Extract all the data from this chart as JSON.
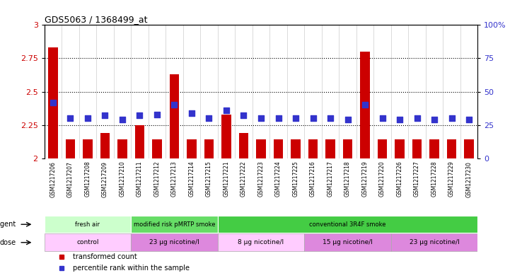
{
  "title": "GDS5063 / 1368499_at",
  "samples": [
    "GSM1217206",
    "GSM1217207",
    "GSM1217208",
    "GSM1217209",
    "GSM1217210",
    "GSM1217211",
    "GSM1217212",
    "GSM1217213",
    "GSM1217214",
    "GSM1217215",
    "GSM1217221",
    "GSM1217222",
    "GSM1217223",
    "GSM1217224",
    "GSM1217225",
    "GSM1217216",
    "GSM1217217",
    "GSM1217218",
    "GSM1217219",
    "GSM1217220",
    "GSM1217226",
    "GSM1217227",
    "GSM1217228",
    "GSM1217229",
    "GSM1217230"
  ],
  "transformed_counts": [
    2.83,
    2.14,
    2.14,
    2.19,
    2.14,
    2.25,
    2.14,
    2.63,
    2.14,
    2.14,
    2.33,
    2.19,
    2.14,
    2.14,
    2.14,
    2.14,
    2.14,
    2.14,
    2.8,
    2.14,
    2.14,
    2.14,
    2.14,
    2.14,
    2.14
  ],
  "percentile_ranks": [
    42,
    30,
    30,
    32,
    29,
    32,
    33,
    40,
    34,
    30,
    36,
    32,
    30,
    30,
    30,
    30,
    30,
    29,
    40,
    30,
    29,
    30,
    29,
    30,
    29
  ],
  "bar_color": "#cc0000",
  "dot_color": "#3333cc",
  "plot_bg": "#ffffff",
  "tick_label_bg": "#cccccc",
  "ylim_left": [
    2.0,
    3.0
  ],
  "ylim_right": [
    0,
    100
  ],
  "yticks_left": [
    2.0,
    2.25,
    2.5,
    2.75,
    3.0
  ],
  "ytick_labels_left": [
    "2",
    "2.25",
    "2.5",
    "2.75",
    "3"
  ],
  "yticks_right": [
    0,
    25,
    50,
    75,
    100
  ],
  "ytick_labels_right": [
    "0",
    "25",
    "50",
    "75",
    "100%"
  ],
  "hlines": [
    2.25,
    2.5,
    2.75
  ],
  "agent_groups": [
    {
      "label": "fresh air",
      "start": 0,
      "end": 5,
      "color": "#ccffcc"
    },
    {
      "label": "modified risk pMRTP smoke",
      "start": 5,
      "end": 10,
      "color": "#66dd66"
    },
    {
      "label": "conventional 3R4F smoke",
      "start": 10,
      "end": 25,
      "color": "#44cc44"
    }
  ],
  "dose_groups": [
    {
      "label": "control",
      "start": 0,
      "end": 5,
      "color": "#ffccff"
    },
    {
      "label": "23 μg nicotine/l",
      "start": 5,
      "end": 10,
      "color": "#dd88dd"
    },
    {
      "label": "8 μg nicotine/l",
      "start": 10,
      "end": 15,
      "color": "#ffccff"
    },
    {
      "label": "15 μg nicotine/l",
      "start": 15,
      "end": 20,
      "color": "#dd88dd"
    },
    {
      "label": "23 μg nicotine/l",
      "start": 20,
      "end": 25,
      "color": "#dd88dd"
    }
  ],
  "legend_items": [
    {
      "label": "transformed count",
      "color": "#cc0000"
    },
    {
      "label": "percentile rank within the sample",
      "color": "#3333cc"
    }
  ],
  "bar_width": 0.55,
  "dot_size": 40,
  "background_color": "#ffffff"
}
